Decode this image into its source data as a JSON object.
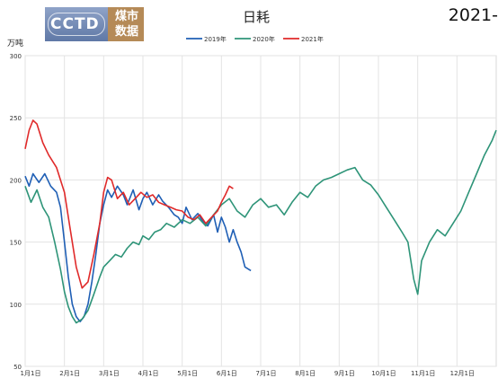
{
  "header": {
    "logo_left": "CCTD",
    "logo_right_line1": "煤市",
    "logo_right_line2": "数据",
    "corner_title": "2021-"
  },
  "chart_data": {
    "type": "line",
    "title": "日耗",
    "ylabel": "万吨",
    "ylim": [
      50,
      300
    ],
    "yticks": [
      50,
      100,
      150,
      200,
      250,
      300
    ],
    "xlim": [
      0,
      12
    ],
    "xticks": [
      "1月1日",
      "2月1日",
      "3月1日",
      "4月1日",
      "5月1日",
      "6月1日",
      "7月1日",
      "8月1日",
      "9月1日",
      "10月1日",
      "11月1日",
      "12月1日"
    ],
    "grid": true,
    "legend_position": "top",
    "series": [
      {
        "name": "2019年",
        "color": "#1f5fb5",
        "x": [
          0,
          0.1,
          0.2,
          0.35,
          0.5,
          0.65,
          0.8,
          0.9,
          1.0,
          1.1,
          1.2,
          1.3,
          1.4,
          1.5,
          1.6,
          1.7,
          1.8,
          1.9,
          2.0,
          2.1,
          2.2,
          2.35,
          2.5,
          2.6,
          2.75,
          2.9,
          3.0,
          3.1,
          3.25,
          3.4,
          3.5,
          3.65,
          3.8,
          3.9,
          4.0,
          4.1,
          4.25,
          4.4,
          4.5,
          4.65,
          4.8,
          4.9,
          5.0,
          5.1,
          5.2,
          5.3,
          5.4,
          5.5,
          5.6,
          5.75
        ],
        "values": [
          203,
          195,
          205,
          198,
          205,
          195,
          190,
          178,
          150,
          122,
          100,
          90,
          86,
          90,
          100,
          118,
          140,
          165,
          180,
          192,
          186,
          195,
          188,
          180,
          192,
          176,
          185,
          190,
          180,
          188,
          183,
          178,
          172,
          170,
          165,
          178,
          168,
          173,
          168,
          163,
          172,
          158,
          170,
          162,
          150,
          160,
          150,
          142,
          130,
          127
        ]
      },
      {
        "name": "2020年",
        "color": "#2e9478",
        "x": [
          0,
          0.15,
          0.3,
          0.45,
          0.6,
          0.75,
          0.9,
          1.0,
          1.1,
          1.2,
          1.3,
          1.45,
          1.6,
          1.75,
          1.9,
          2.0,
          2.15,
          2.3,
          2.45,
          2.6,
          2.75,
          2.9,
          3.0,
          3.15,
          3.3,
          3.45,
          3.6,
          3.8,
          4.0,
          4.2,
          4.4,
          4.6,
          4.8,
          5.0,
          5.2,
          5.4,
          5.6,
          5.8,
          6.0,
          6.2,
          6.4,
          6.6,
          6.8,
          7.0,
          7.2,
          7.4,
          7.6,
          7.8,
          8.0,
          8.2,
          8.4,
          8.6,
          8.8,
          9.0,
          9.2,
          9.4,
          9.6,
          9.75,
          9.9,
          10.0,
          10.1,
          10.3,
          10.5,
          10.7,
          10.9,
          11.1,
          11.3,
          11.5,
          11.7,
          11.9,
          12.0
        ],
        "values": [
          195,
          182,
          192,
          178,
          170,
          150,
          128,
          110,
          98,
          90,
          85,
          88,
          95,
          108,
          122,
          130,
          135,
          140,
          138,
          145,
          150,
          148,
          155,
          152,
          158,
          160,
          165,
          162,
          168,
          165,
          170,
          163,
          172,
          180,
          185,
          175,
          170,
          180,
          185,
          178,
          180,
          172,
          182,
          190,
          186,
          195,
          200,
          202,
          205,
          208,
          210,
          200,
          196,
          188,
          178,
          168,
          158,
          150,
          120,
          108,
          135,
          150,
          160,
          155,
          165,
          175,
          190,
          205,
          220,
          232,
          240
        ]
      },
      {
        "name": "2021年",
        "color": "#e02a2a",
        "x": [
          0,
          0.1,
          0.2,
          0.3,
          0.45,
          0.6,
          0.8,
          1.0,
          1.15,
          1.3,
          1.45,
          1.6,
          1.75,
          1.9,
          2.0,
          2.1,
          2.2,
          2.35,
          2.5,
          2.65,
          2.8,
          2.95,
          3.1,
          3.25,
          3.4,
          3.55,
          3.7,
          3.85,
          4.0,
          4.15,
          4.3,
          4.45,
          4.6,
          4.75,
          4.9,
          5.0,
          5.1,
          5.2,
          5.3
        ],
        "values": [
          225,
          240,
          248,
          245,
          230,
          220,
          210,
          190,
          160,
          130,
          113,
          118,
          140,
          165,
          190,
          202,
          200,
          185,
          190,
          180,
          185,
          190,
          186,
          188,
          182,
          180,
          178,
          176,
          175,
          170,
          168,
          172,
          165,
          170,
          175,
          182,
          188,
          195,
          193
        ]
      }
    ]
  }
}
